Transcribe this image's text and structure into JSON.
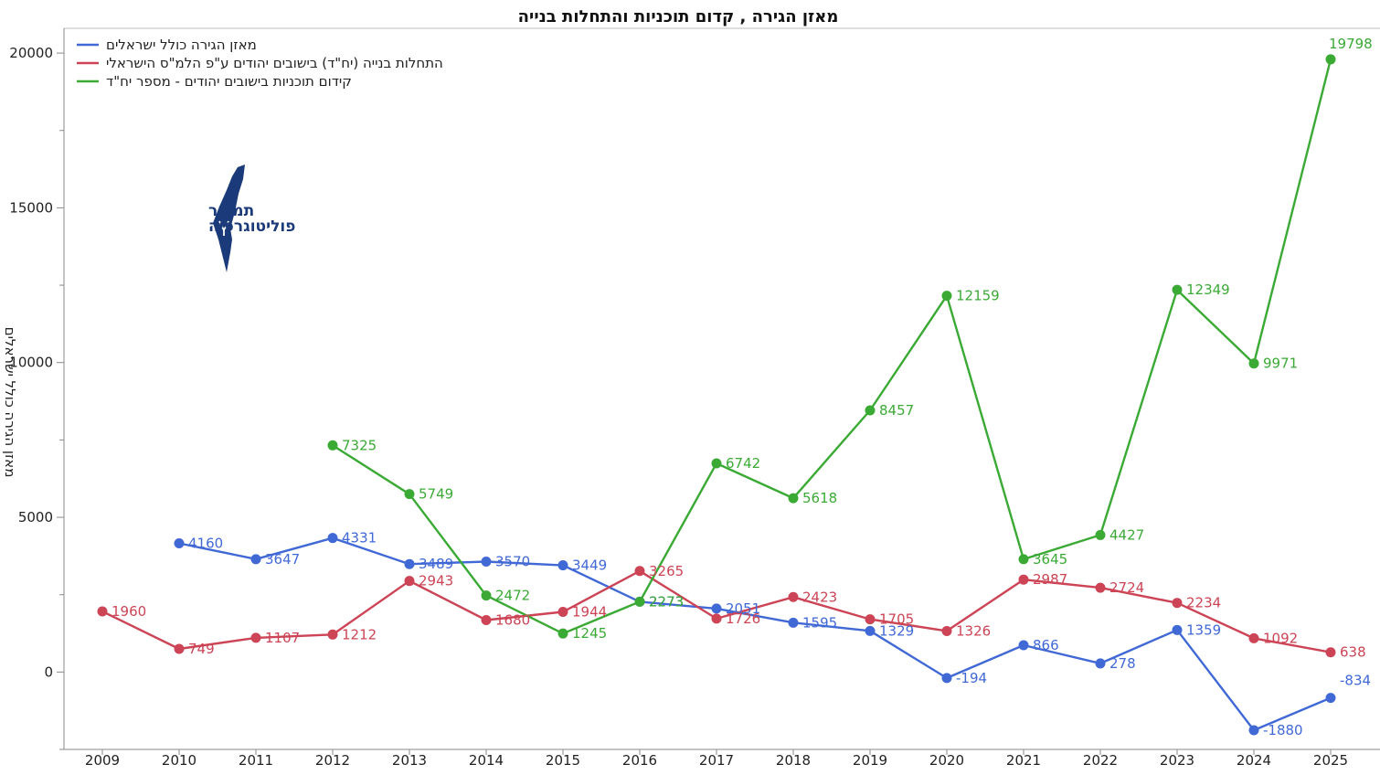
{
  "colors": {
    "series_blue": "#4169d6",
    "series_red": "#cc4455",
    "series_green": "#3aaa35",
    "axis": "#555555",
    "logo": "#1a3a7a"
  },
  "logo": {
    "line1": "תמרור",
    "line2": "פוליטוגרפיה",
    "icon": "israel-map-icon"
  },
  "chart_data": {
    "type": "line",
    "title": "מאזן הגירה , קדום תוכניות והתחלות בנייה",
    "ylabel": "מאזן הגירה כולל ישראלים",
    "xlabel": "",
    "x": [
      2009,
      2010,
      2011,
      2012,
      2013,
      2014,
      2015,
      2016,
      2017,
      2018,
      2019,
      2020,
      2021,
      2022,
      2023,
      2024,
      2025
    ],
    "ylim": [
      -2500,
      20800
    ],
    "yticks": [
      0,
      5000,
      10000,
      15000,
      20000
    ],
    "grid": false,
    "legend_position": "top-left",
    "series": [
      {
        "name": "מאזן הגירה כולל ישראלים",
        "color": "#4169d6",
        "values": [
          null,
          4160,
          3647,
          4331,
          3489,
          3570,
          3449,
          2273,
          2051,
          1595,
          1329,
          -194,
          866,
          278,
          1359,
          -1880,
          -834
        ]
      },
      {
        "name": "התחלות בנייה (יח\"ד) בישובים יהודים ע\"פ הלמ\"ס הישראלי",
        "color": "#cc4455",
        "values": [
          1960,
          749,
          1107,
          1212,
          2943,
          1680,
          1944,
          3265,
          1726,
          2423,
          1705,
          1326,
          2987,
          2724,
          2234,
          1092,
          638
        ]
      },
      {
        "name": "קידום תוכניות בישובים יהודים - מספר יח\"ד",
        "color": "#3aaa35",
        "values": [
          null,
          null,
          null,
          7325,
          5749,
          2472,
          1245,
          2273,
          6742,
          5618,
          8457,
          12159,
          3645,
          4427,
          12349,
          9971,
          19798
        ]
      }
    ]
  }
}
